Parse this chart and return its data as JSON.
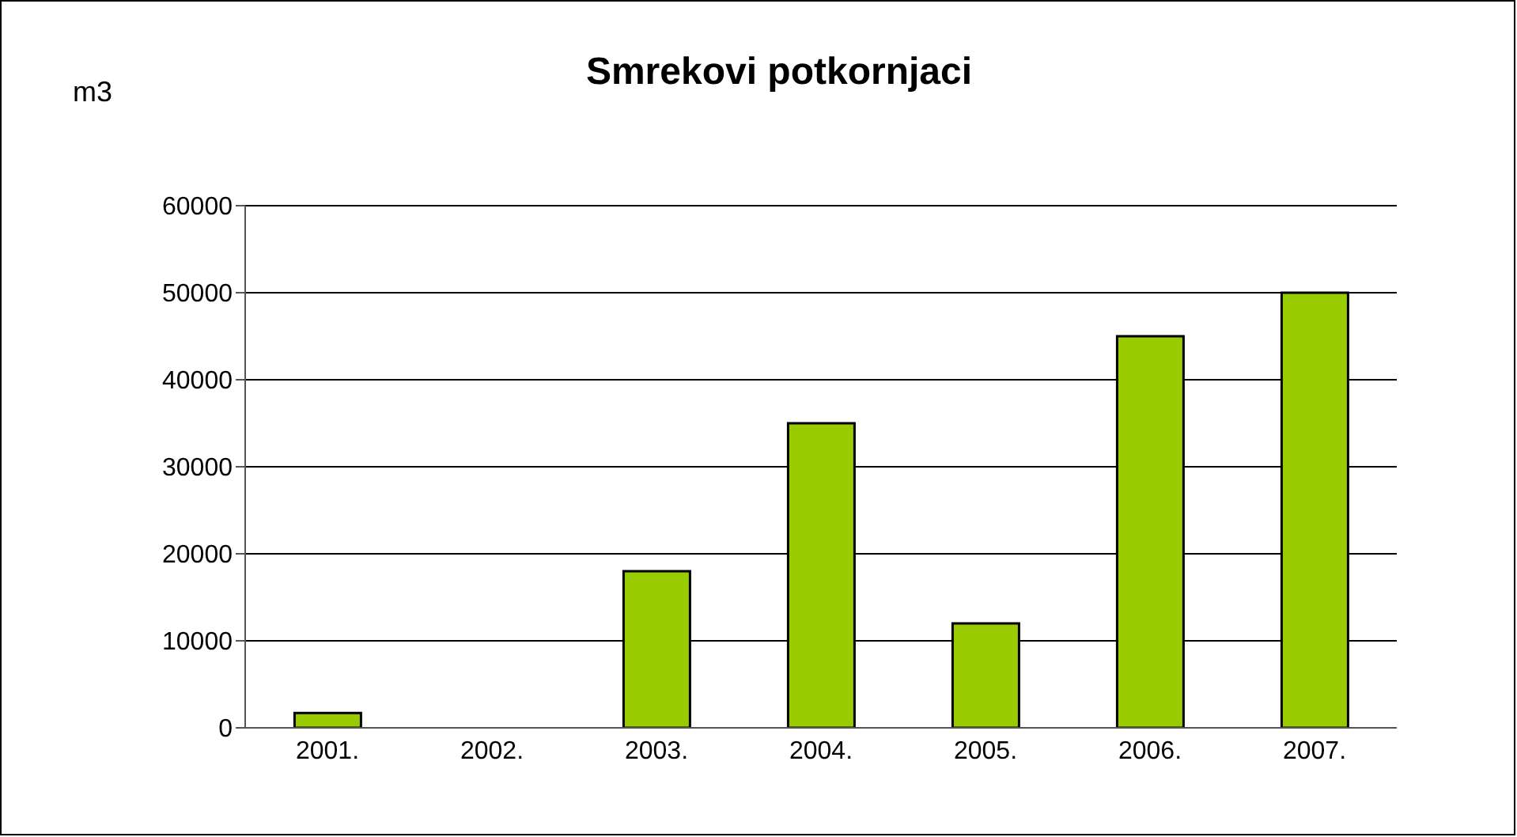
{
  "chart_data": {
    "type": "bar",
    "title": "Smrekovi potkornjaci",
    "ylabel": "m3",
    "categories": [
      "2001.",
      "2002.",
      "2003.",
      "2004.",
      "2005.",
      "2006.",
      "2007."
    ],
    "values": [
      1700,
      0,
      18000,
      35000,
      12000,
      45000,
      50000
    ],
    "color": "#99cc00",
    "ylim": [
      0,
      60000
    ],
    "yticks": [
      0,
      10000,
      20000,
      30000,
      40000,
      50000,
      60000
    ],
    "grid": "y"
  }
}
